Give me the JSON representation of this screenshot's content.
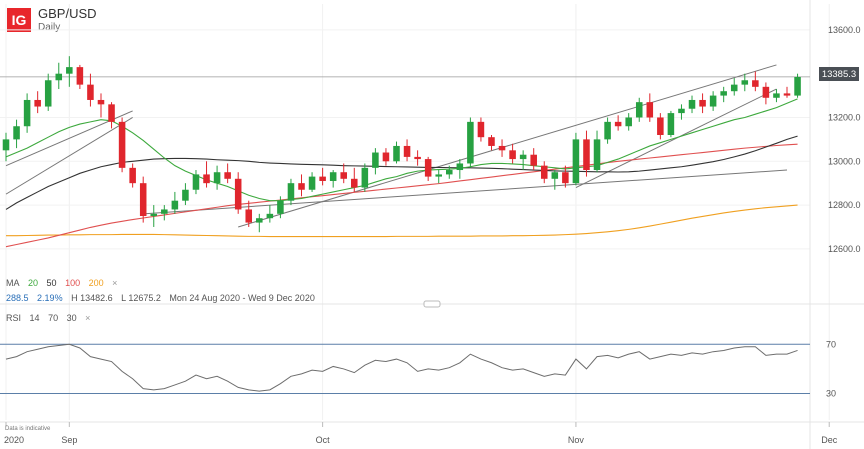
{
  "header": {
    "logo": "IG",
    "title": "GBP/USD",
    "subtitle": "Daily"
  },
  "ma_legend": {
    "label": "MA",
    "p1": "20",
    "p2": "50",
    "p3": "100",
    "p4": "200",
    "close": "×",
    "colors": {
      "ma20": "#3da93d",
      "ma50": "#333333",
      "ma100": "#e05050",
      "ma200": "#f0a020"
    }
  },
  "range_info": {
    "change": "288.5",
    "pct": "2.19%",
    "high": "H 13482.6",
    "low": "L 12675.2",
    "dates": "Mon 24 Aug 2020 - Wed 9 Dec 2020"
  },
  "rsi_legend": {
    "label": "RSI",
    "p1": "14",
    "p2": "70",
    "p3": "30",
    "close": "×"
  },
  "price_tag": "13385.3",
  "footnote": "Data is indicative",
  "colors": {
    "up": "#27a142",
    "down": "#e0262d",
    "rsi_line": "#6d6d6d",
    "level_line": "#5b7fa8"
  },
  "chart_data": {
    "type": "candlestick",
    "price_axis": {
      "ticks": [
        "13600.0",
        "13200.0",
        "13000.0",
        "12800.0",
        "12600.0"
      ],
      "ylim": [
        12540,
        13700
      ]
    },
    "rsi_axis": {
      "ticks": [
        "70",
        "30"
      ],
      "ylim": [
        15,
        80
      ]
    },
    "x_labels": [
      "2020",
      "Sep",
      "Oct",
      "Nov",
      "Dec"
    ],
    "x_label_candle": [
      0,
      6,
      30,
      54,
      78
    ],
    "candles": [
      [
        13050,
        13130,
        13000,
        13100
      ],
      [
        13100,
        13190,
        13060,
        13160
      ],
      [
        13160,
        13310,
        13130,
        13280
      ],
      [
        13280,
        13320,
        13220,
        13250
      ],
      [
        13250,
        13400,
        13230,
        13370
      ],
      [
        13370,
        13450,
        13330,
        13400
      ],
      [
        13400,
        13480,
        13340,
        13430
      ],
      [
        13430,
        13440,
        13330,
        13350
      ],
      [
        13350,
        13400,
        13250,
        13280
      ],
      [
        13280,
        13310,
        13200,
        13260
      ],
      [
        13260,
        13270,
        13150,
        13180
      ],
      [
        13180,
        13200,
        12950,
        12970
      ],
      [
        12970,
        12990,
        12880,
        12900
      ],
      [
        12900,
        12930,
        12720,
        12750
      ],
      [
        12750,
        12800,
        12700,
        12760
      ],
      [
        12760,
        12800,
        12730,
        12780
      ],
      [
        12780,
        12860,
        12760,
        12820
      ],
      [
        12820,
        12900,
        12800,
        12870
      ],
      [
        12870,
        12960,
        12850,
        12940
      ],
      [
        12940,
        13000,
        12880,
        12900
      ],
      [
        12900,
        12980,
        12870,
        12950
      ],
      [
        12950,
        12990,
        12900,
        12920
      ],
      [
        12920,
        12950,
        12760,
        12780
      ],
      [
        12780,
        12820,
        12700,
        12720
      ],
      [
        12720,
        12760,
        12676,
        12740
      ],
      [
        12740,
        12800,
        12720,
        12760
      ],
      [
        12760,
        12840,
        12740,
        12820
      ],
      [
        12820,
        12920,
        12800,
        12900
      ],
      [
        12900,
        12940,
        12840,
        12870
      ],
      [
        12870,
        12950,
        12860,
        12930
      ],
      [
        12930,
        12970,
        12890,
        12910
      ],
      [
        12910,
        12960,
        12880,
        12950
      ],
      [
        12950,
        12990,
        12900,
        12920
      ],
      [
        12920,
        12970,
        12860,
        12880
      ],
      [
        12880,
        12990,
        12860,
        12970
      ],
      [
        12970,
        13060,
        12940,
        13040
      ],
      [
        13040,
        13060,
        12980,
        13000
      ],
      [
        13000,
        13090,
        12990,
        13070
      ],
      [
        13070,
        13100,
        13000,
        13020
      ],
      [
        13020,
        13050,
        12980,
        13010
      ],
      [
        13010,
        13020,
        12910,
        12930
      ],
      [
        12930,
        12960,
        12900,
        12940
      ],
      [
        12940,
        12980,
        12920,
        12960
      ],
      [
        12960,
        13010,
        12920,
        12990
      ],
      [
        12990,
        13200,
        12970,
        13180
      ],
      [
        13180,
        13200,
        13090,
        13110
      ],
      [
        13110,
        13120,
        13050,
        13070
      ],
      [
        13070,
        13100,
        13020,
        13050
      ],
      [
        13050,
        13080,
        12990,
        13010
      ],
      [
        13010,
        13050,
        12960,
        13030
      ],
      [
        13030,
        13060,
        12960,
        12980
      ],
      [
        12980,
        13000,
        12900,
        12920
      ],
      [
        12920,
        12960,
        12870,
        12950
      ],
      [
        12950,
        12980,
        12880,
        12900
      ],
      [
        12900,
        13130,
        12890,
        13100
      ],
      [
        13100,
        13140,
        12930,
        12960
      ],
      [
        12960,
        13140,
        12950,
        13100
      ],
      [
        13100,
        13200,
        13080,
        13180
      ],
      [
        13180,
        13210,
        13140,
        13160
      ],
      [
        13160,
        13220,
        13140,
        13200
      ],
      [
        13200,
        13290,
        13180,
        13270
      ],
      [
        13270,
        13310,
        13180,
        13200
      ],
      [
        13200,
        13220,
        13100,
        13120
      ],
      [
        13120,
        13230,
        13110,
        13220
      ],
      [
        13220,
        13260,
        13190,
        13240
      ],
      [
        13240,
        13300,
        13220,
        13280
      ],
      [
        13280,
        13310,
        13220,
        13250
      ],
      [
        13250,
        13320,
        13230,
        13300
      ],
      [
        13300,
        13340,
        13270,
        13320
      ],
      [
        13320,
        13380,
        13300,
        13350
      ],
      [
        13350,
        13400,
        13320,
        13370
      ],
      [
        13370,
        13410,
        13320,
        13340
      ],
      [
        13340,
        13360,
        13260,
        13290
      ],
      [
        13290,
        13330,
        13270,
        13310
      ],
      [
        13310,
        13340,
        13290,
        13300
      ],
      [
        13300,
        13400,
        13290,
        13385
      ]
    ],
    "ma20": [
      13020,
      13040,
      13060,
      13085,
      13110,
      13135,
      13155,
      13170,
      13180,
      13190,
      13185,
      13160,
      13130,
      13095,
      13055,
      13015,
      12980,
      12955,
      12935,
      12915,
      12900,
      12885,
      12865,
      12845,
      12830,
      12820,
      12820,
      12825,
      12830,
      12840,
      12850,
      12860,
      12870,
      12880,
      12890,
      12905,
      12920,
      12930,
      12945,
      12955,
      12960,
      12962,
      12964,
      12968,
      12975,
      12985,
      12990,
      12990,
      12988,
      12985,
      12980,
      12975,
      12970,
      12965,
      12970,
      12975,
      12980,
      12995,
      13010,
      13030,
      13050,
      13070,
      13085,
      13100,
      13115,
      13130,
      13145,
      13160,
      13175,
      13190,
      13200,
      13215,
      13230,
      13245,
      13265,
      13285
    ],
    "ma50": [
      12780,
      12810,
      12835,
      12860,
      12885,
      12905,
      12925,
      12945,
      12960,
      12975,
      12985,
      12995,
      13000,
      13005,
      13010,
      13012,
      13013,
      13013,
      13012,
      13010,
      13007,
      13005,
      13003,
      13000,
      12995,
      12992,
      12990,
      12988,
      12986,
      12985,
      12984,
      12982,
      12980,
      12979,
      12978,
      12977,
      12976,
      12975,
      12974,
      12973,
      12972,
      12972,
      12971,
      12970,
      12970,
      12969,
      12968,
      12966,
      12964,
      12962,
      12960,
      12958,
      12956,
      12955,
      12954,
      12953,
      12952,
      12952,
      12951,
      12952,
      12955,
      12960,
      12965,
      12970,
      12975,
      12982,
      12990,
      12998,
      13008,
      13020,
      13033,
      13048,
      13065,
      13082,
      13100,
      13115
    ],
    "ma100": [
      12610,
      12620,
      12630,
      12640,
      12650,
      12662,
      12674,
      12686,
      12698,
      12708,
      12718,
      12726,
      12734,
      12741,
      12748,
      12755,
      12762,
      12769,
      12776,
      12783,
      12790,
      12797,
      12803,
      12808,
      12813,
      12818,
      12823,
      12828,
      12833,
      12838,
      12843,
      12848,
      12853,
      12858,
      12863,
      12868,
      12873,
      12878,
      12883,
      12888,
      12893,
      12898,
      12904,
      12910,
      12916,
      12922,
      12928,
      12934,
      12940,
      12946,
      12952,
      12958,
      12964,
      12970,
      12976,
      12982,
      12988,
      12994,
      13000,
      13005,
      13010,
      13015,
      13020,
      13025,
      13030,
      13035,
      13040,
      13045,
      13050,
      13055,
      13060,
      13064,
      13068,
      13072,
      13075,
      13078
    ],
    "ma200": [
      12660,
      12660,
      12661,
      12662,
      12663,
      12663,
      12664,
      12664,
      12665,
      12665,
      12665,
      12666,
      12666,
      12666,
      12666,
      12665,
      12664,
      12663,
      12662,
      12661,
      12660,
      12659,
      12658,
      12657,
      12657,
      12656,
      12656,
      12656,
      12656,
      12656,
      12656,
      12656,
      12656,
      12656,
      12656,
      12656,
      12656,
      12657,
      12657,
      12657,
      12657,
      12658,
      12658,
      12658,
      12658,
      12659,
      12659,
      12659,
      12660,
      12660,
      12661,
      12662,
      12663,
      12665,
      12667,
      12670,
      12674,
      12678,
      12683,
      12689,
      12696,
      12704,
      12713,
      12722,
      12731,
      12740,
      12748,
      12756,
      12764,
      12771,
      12777,
      12783,
      12788,
      12792,
      12796,
      12800
    ],
    "rsi": [
      58,
      60,
      64,
      66,
      68,
      69,
      70,
      67,
      60,
      58,
      56,
      48,
      42,
      34,
      33,
      34,
      37,
      40,
      45,
      42,
      44,
      40,
      35,
      33,
      32,
      33,
      38,
      44,
      46,
      49,
      48,
      52,
      50,
      47,
      53,
      57,
      56,
      58,
      55,
      48,
      50,
      49,
      51,
      55,
      62,
      58,
      55,
      51,
      49,
      50,
      47,
      44,
      46,
      45,
      58,
      50,
      60,
      61,
      59,
      62,
      64,
      58,
      60,
      62,
      61,
      63,
      62,
      64,
      65,
      67,
      68,
      68,
      61,
      62,
      62,
      65
    ],
    "rsi_levels": [
      70,
      30
    ],
    "last_price": 13385.3
  }
}
